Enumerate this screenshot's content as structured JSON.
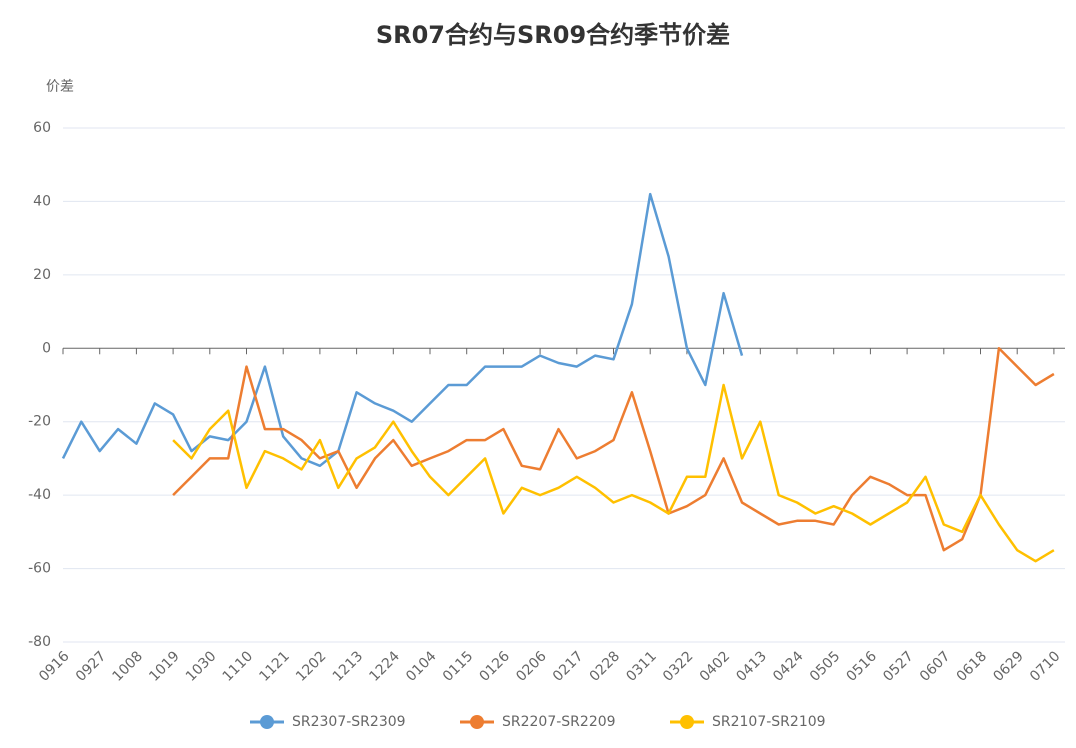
{
  "chart_data": {
    "type": "line",
    "title": "SR07合约与SR09合约季节价差",
    "y_label": "价差",
    "categories": [
      "0916",
      null,
      "0927",
      null,
      "1008",
      null,
      "1019",
      null,
      "1030",
      null,
      "1110",
      null,
      "1121",
      null,
      "1202",
      null,
      "1213",
      null,
      "1224",
      null,
      "0104",
      null,
      "0115",
      null,
      "0126",
      null,
      "0206",
      null,
      "0217",
      null,
      "0228",
      null,
      "0311",
      null,
      "0322",
      null,
      "0402",
      null,
      "0413",
      null,
      "0424",
      null,
      "0505",
      null,
      "0516",
      null,
      "0527",
      null,
      "0607",
      null,
      "0618",
      null,
      "0629",
      null,
      "0710"
    ],
    "series": [
      {
        "name": "SR2307-SR2309",
        "color": "#5b9bd5",
        "values": [
          -30,
          -20,
          -28,
          -22,
          -26,
          -15,
          -18,
          -28,
          -24,
          -25,
          -20,
          -5,
          -24,
          -30,
          -32,
          -28,
          -12,
          -15,
          -17,
          -20,
          -15,
          -10,
          -10,
          -5,
          -5,
          -5,
          -2,
          -4,
          -5,
          -2,
          -3,
          12,
          42,
          25,
          0,
          -10,
          15,
          -2,
          null,
          null,
          null,
          null,
          null,
          null,
          null,
          null,
          null,
          null,
          null,
          null,
          null,
          null,
          null,
          null,
          null
        ]
      },
      {
        "name": "SR2207-SR2209",
        "color": "#ed7d31",
        "values": [
          null,
          null,
          null,
          null,
          null,
          null,
          -40,
          -35,
          -30,
          -30,
          -5,
          -22,
          -22,
          -25,
          -30,
          -28,
          -38,
          -30,
          -25,
          -32,
          -30,
          -28,
          -25,
          -25,
          -22,
          -32,
          -33,
          -22,
          -30,
          -28,
          -25,
          -12,
          -28,
          -45,
          -43,
          -40,
          -30,
          -42,
          -45,
          -48,
          -47,
          -47,
          -48,
          -40,
          -35,
          -37,
          -40,
          -40,
          -55,
          -52,
          -40,
          0,
          -5,
          -10,
          -7
        ]
      },
      {
        "name": "SR2107-SR2109",
        "color": "#ffc000",
        "values": [
          null,
          null,
          null,
          null,
          null,
          null,
          -25,
          -30,
          -22,
          -17,
          -38,
          -28,
          -30,
          -33,
          -25,
          -38,
          -30,
          -27,
          -20,
          -28,
          -35,
          -40,
          -35,
          -30,
          -45,
          -38,
          -40,
          -38,
          -35,
          -38,
          -42,
          -40,
          -42,
          -45,
          -35,
          -35,
          -10,
          -30,
          -20,
          -40,
          -42,
          -45,
          -43,
          -45,
          -48,
          -45,
          -42,
          -35,
          -48,
          -50,
          -40,
          -48,
          -55,
          -58,
          -55
        ]
      }
    ],
    "ylim": [
      -80,
      60
    ],
    "yticks": [
      -80,
      -60,
      -40,
      -20,
      0,
      20,
      40,
      60
    ],
    "grid": true,
    "legend": "bottom"
  }
}
